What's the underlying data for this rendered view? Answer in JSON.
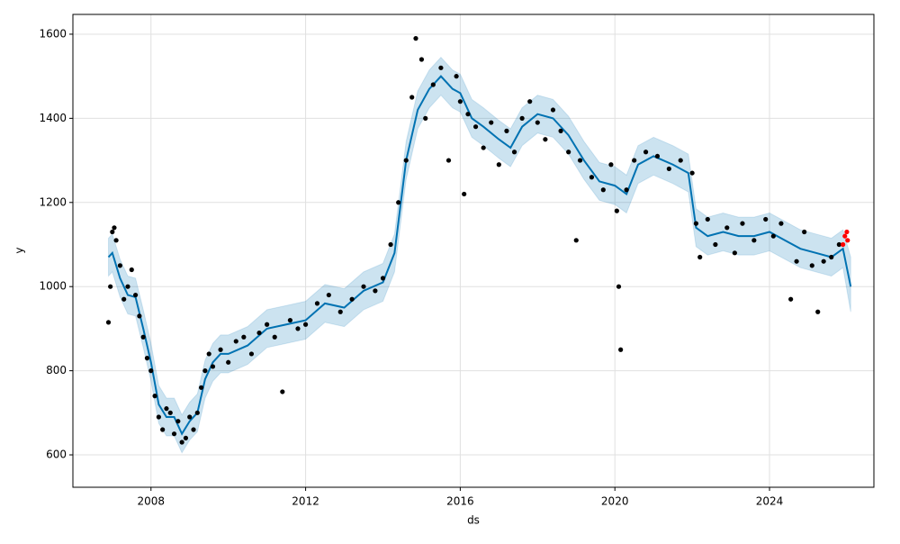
{
  "chart_data": {
    "type": "forecast",
    "xlabel": "ds",
    "ylabel": "y",
    "xlim": [
      2005.98,
      2026.7
    ],
    "ylim": [
      523,
      1647
    ],
    "xticks": [
      2008,
      2012,
      2016,
      2020,
      2024
    ],
    "yticks": [
      600,
      800,
      1000,
      1200,
      1400,
      1600
    ],
    "grid": true,
    "series": [
      {
        "mark": "band",
        "color": "#0072B2",
        "x": [
          2006.9,
          2007.0,
          2007.2,
          2007.4,
          2007.6,
          2007.8,
          2008.0,
          2008.2,
          2008.4,
          2008.6,
          2008.8,
          2009.0,
          2009.2,
          2009.4,
          2009.6,
          2009.8,
          2010.0,
          2010.5,
          2011.0,
          2011.5,
          2012.0,
          2012.5,
          2013.0,
          2013.5,
          2014.0,
          2014.3,
          2014.6,
          2014.9,
          2015.2,
          2015.5,
          2015.8,
          2016.0,
          2016.3,
          2016.6,
          2017.0,
          2017.3,
          2017.6,
          2018.0,
          2018.4,
          2018.8,
          2019.2,
          2019.6,
          2020.0,
          2020.3,
          2020.6,
          2021.0,
          2021.5,
          2021.9,
          2022.1,
          2022.4,
          2022.8,
          2023.2,
          2023.6,
          2024.0,
          2024.4,
          2024.8,
          2025.2,
          2025.6,
          2025.9,
          2026.1
        ],
        "values": [
          1025,
          1035,
          975,
          935,
          930,
          855,
          775,
          675,
          645,
          645,
          605,
          635,
          655,
          735,
          775,
          795,
          795,
          815,
          855,
          865,
          875,
          915,
          905,
          945,
          965,
          1035,
          1255,
          1375,
          1425,
          1455,
          1425,
          1415,
          1355,
          1335,
          1305,
          1285,
          1335,
          1365,
          1355,
          1315,
          1255,
          1205,
          1195,
          1175,
          1245,
          1265,
          1245,
          1225,
          1095,
          1075,
          1085,
          1075,
          1075,
          1085,
          1065,
          1045,
          1035,
          1025,
          1045,
          940
        ],
        "upper": [
          1115,
          1125,
          1065,
          1025,
          1020,
          945,
          865,
          765,
          735,
          735,
          695,
          725,
          745,
          825,
          865,
          885,
          885,
          905,
          945,
          955,
          965,
          1005,
          995,
          1035,
          1055,
          1125,
          1345,
          1465,
          1515,
          1545,
          1515,
          1505,
          1445,
          1425,
          1395,
          1375,
          1425,
          1455,
          1445,
          1405,
          1345,
          1295,
          1285,
          1265,
          1335,
          1355,
          1335,
          1315,
          1185,
          1165,
          1175,
          1165,
          1165,
          1175,
          1155,
          1135,
          1125,
          1115,
          1135,
          1070
        ]
      },
      {
        "mark": "line",
        "color": "#0072B2",
        "x": [
          2006.9,
          2007.0,
          2007.2,
          2007.4,
          2007.6,
          2007.8,
          2008.0,
          2008.2,
          2008.4,
          2008.6,
          2008.8,
          2009.0,
          2009.2,
          2009.4,
          2009.6,
          2009.8,
          2010.0,
          2010.5,
          2011.0,
          2011.5,
          2012.0,
          2012.5,
          2013.0,
          2013.5,
          2014.0,
          2014.3,
          2014.6,
          2014.9,
          2015.2,
          2015.5,
          2015.8,
          2016.0,
          2016.3,
          2016.6,
          2017.0,
          2017.3,
          2017.6,
          2018.0,
          2018.4,
          2018.8,
          2019.2,
          2019.6,
          2020.0,
          2020.3,
          2020.6,
          2021.0,
          2021.5,
          2021.9,
          2022.1,
          2022.4,
          2022.8,
          2023.2,
          2023.6,
          2024.0,
          2024.4,
          2024.8,
          2025.2,
          2025.6,
          2025.9,
          2026.1
        ],
        "values": [
          1070,
          1080,
          1020,
          980,
          975,
          900,
          820,
          720,
          690,
          690,
          650,
          680,
          700,
          780,
          820,
          840,
          840,
          860,
          900,
          910,
          920,
          960,
          950,
          990,
          1010,
          1080,
          1300,
          1420,
          1470,
          1500,
          1470,
          1460,
          1400,
          1380,
          1350,
          1330,
          1380,
          1410,
          1400,
          1360,
          1300,
          1250,
          1240,
          1220,
          1290,
          1310,
          1290,
          1270,
          1140,
          1120,
          1130,
          1120,
          1120,
          1130,
          1110,
          1090,
          1080,
          1070,
          1090,
          1000
        ]
      },
      {
        "mark": "dots",
        "color": "#000000",
        "x": [
          2006.9,
          2006.95,
          2007.0,
          2007.05,
          2007.1,
          2007.2,
          2007.3,
          2007.4,
          2007.5,
          2007.6,
          2007.7,
          2007.8,
          2007.9,
          2008.0,
          2008.1,
          2008.2,
          2008.3,
          2008.4,
          2008.5,
          2008.6,
          2008.7,
          2008.8,
          2008.9,
          2009.0,
          2009.1,
          2009.2,
          2009.3,
          2009.4,
          2009.5,
          2009.6,
          2009.8,
          2010.0,
          2010.2,
          2010.4,
          2010.6,
          2010.8,
          2011.0,
          2011.2,
          2011.4,
          2011.6,
          2011.8,
          2012.0,
          2012.3,
          2012.6,
          2012.9,
          2013.2,
          2013.5,
          2013.8,
          2014.0,
          2014.2,
          2014.4,
          2014.6,
          2014.75,
          2014.85,
          2015.0,
          2015.1,
          2015.3,
          2015.5,
          2015.7,
          2015.9,
          2016.0,
          2016.1,
          2016.2,
          2016.4,
          2016.6,
          2016.8,
          2017.0,
          2017.2,
          2017.4,
          2017.6,
          2017.8,
          2018.0,
          2018.2,
          2018.4,
          2018.6,
          2018.8,
          2019.0,
          2019.1,
          2019.4,
          2019.7,
          2019.9,
          2020.05,
          2020.1,
          2020.15,
          2020.3,
          2020.5,
          2020.8,
          2021.1,
          2021.4,
          2021.7,
          2022.0,
          2022.1,
          2022.2,
          2022.4,
          2022.6,
          2022.9,
          2023.1,
          2023.3,
          2023.6,
          2023.9,
          2024.1,
          2024.3,
          2024.55,
          2024.7,
          2024.9,
          2025.1,
          2025.25,
          2025.4,
          2025.6,
          2025.8
        ],
        "values": [
          915,
          1000,
          1130,
          1140,
          1110,
          1050,
          970,
          1000,
          1040,
          980,
          930,
          880,
          830,
          800,
          740,
          690,
          660,
          710,
          700,
          650,
          680,
          630,
          640,
          690,
          660,
          700,
          760,
          800,
          840,
          810,
          850,
          820,
          870,
          880,
          840,
          890,
          910,
          880,
          750,
          920,
          900,
          910,
          960,
          980,
          940,
          970,
          1000,
          990,
          1020,
          1100,
          1200,
          1300,
          1450,
          1590,
          1540,
          1400,
          1480,
          1520,
          1300,
          1500,
          1440,
          1220,
          1410,
          1380,
          1330,
          1390,
          1290,
          1370,
          1320,
          1400,
          1440,
          1390,
          1350,
          1420,
          1370,
          1320,
          1110,
          1300,
          1260,
          1230,
          1290,
          1180,
          1000,
          850,
          1230,
          1300,
          1320,
          1310,
          1280,
          1300,
          1270,
          1150,
          1070,
          1160,
          1100,
          1140,
          1080,
          1150,
          1110,
          1160,
          1120,
          1150,
          970,
          1060,
          1130,
          1050,
          940,
          1060,
          1070,
          1100
        ]
      },
      {
        "mark": "dots",
        "color": "#ff0000",
        "x": [
          2025.9,
          2025.95,
          2026.0,
          2026.02
        ],
        "values": [
          1100,
          1120,
          1130,
          1110
        ]
      }
    ]
  }
}
